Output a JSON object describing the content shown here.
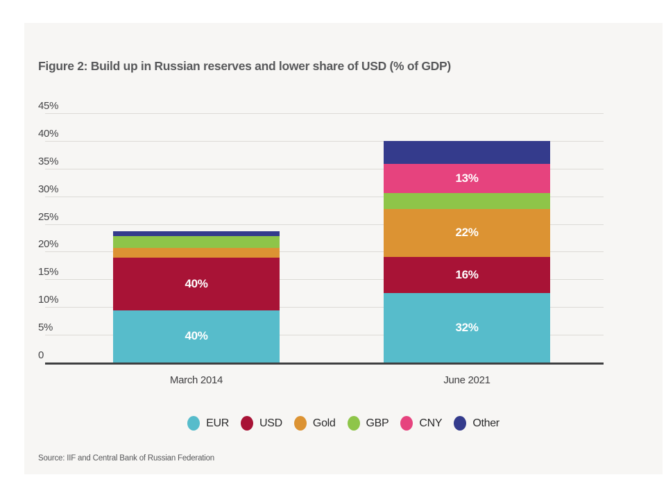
{
  "figure": {
    "title": "Figure 2: Build up in Russian reserves and lower share of USD (% of GDP)",
    "source": "Source: IIF and Central Bank of Russian Federation"
  },
  "chart_data": {
    "type": "bar",
    "stacked": true,
    "title": "Figure 2: Build up in Russian reserves and lower share of USD (% of GDP)",
    "ylabel": "% of GDP",
    "xlabel": "",
    "ylim": [
      0,
      45
    ],
    "grid": true,
    "legend_position": "bottom",
    "categories": [
      "March 2014",
      "June 2021"
    ],
    "y_ticks": [
      {
        "value": 45,
        "label": "45%"
      },
      {
        "value": 40,
        "label": "40%"
      },
      {
        "value": 35,
        "label": "35%"
      },
      {
        "value": 30,
        "label": "30%"
      },
      {
        "value": 25,
        "label": "25%"
      },
      {
        "value": 20,
        "label": "20%"
      },
      {
        "value": 15,
        "label": "15%"
      },
      {
        "value": 10,
        "label": "10%"
      },
      {
        "value": 5,
        "label": "5%"
      },
      {
        "value": 0,
        "label": "0"
      }
    ],
    "series": [
      {
        "name": "EUR",
        "color": "#57bccb",
        "values": [
          9.4,
          12.5
        ],
        "labels": [
          "40%",
          "32%"
        ]
      },
      {
        "name": "USD",
        "color": "#a81336",
        "values": [
          9.5,
          6.6
        ],
        "labels": [
          "40%",
          "16%"
        ]
      },
      {
        "name": "Gold",
        "color": "#dc9333",
        "values": [
          1.8,
          8.6
        ],
        "labels": [
          "",
          "22%"
        ]
      },
      {
        "name": "GBP",
        "color": "#8ec549",
        "values": [
          2.1,
          2.9
        ],
        "labels": [
          "",
          ""
        ]
      },
      {
        "name": "CNY",
        "color": "#e6437e",
        "values": [
          0,
          5.3
        ],
        "labels": [
          "",
          "13%"
        ]
      },
      {
        "name": "Other",
        "color": "#343b8c",
        "values": [
          0.9,
          4.1
        ],
        "labels": [
          "",
          ""
        ]
      }
    ],
    "bar_totals_pct_gdp": [
      23.7,
      40.0
    ]
  }
}
